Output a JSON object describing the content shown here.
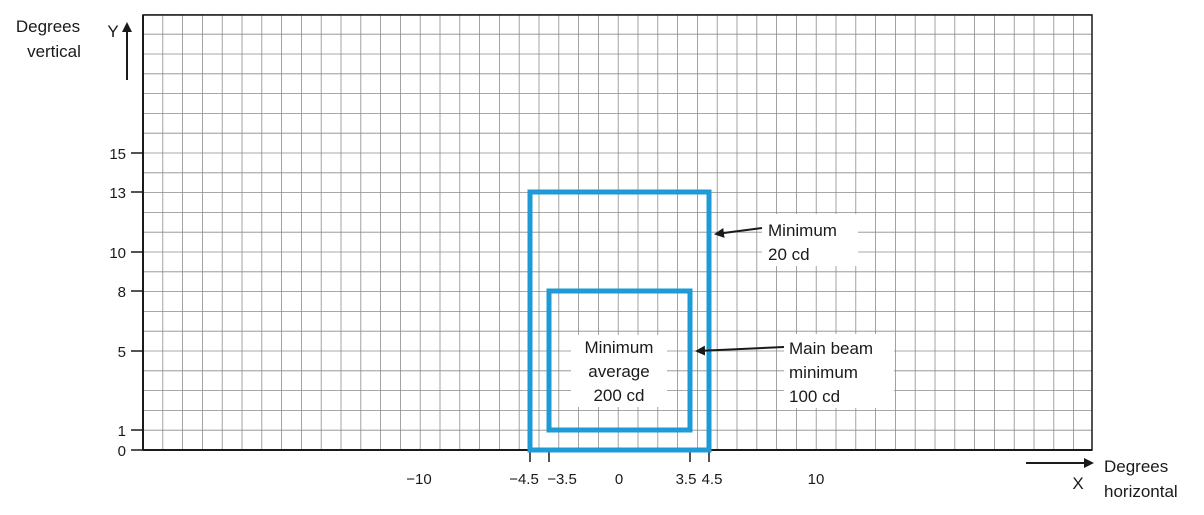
{
  "diagram": {
    "y_axis": {
      "title_line1": "Degrees",
      "title_line2": "vertical",
      "letter": "Y"
    },
    "x_axis": {
      "title_line1": "Degrees",
      "title_line2": "horizontal",
      "letter": "X"
    },
    "y_ticks": [
      "0",
      "1",
      "5",
      "8",
      "10",
      "13",
      "15"
    ],
    "x_ticks": [
      "−10",
      "−4.5",
      "−3.5",
      "0",
      "3.5",
      "4.5",
      "10"
    ],
    "outer_box": {
      "x_range": [
        -4.5,
        4.5
      ],
      "y_range": [
        0,
        13
      ],
      "label_line1": "Minimum",
      "label_line2": "20 cd"
    },
    "inner_box": {
      "x_range": [
        -3.5,
        3.5
      ],
      "y_range": [
        1,
        8
      ],
      "center_line1": "Minimum",
      "center_line2": "average",
      "center_line3": "200 cd",
      "label_line1": "Main beam",
      "label_line2": "minimum",
      "label_line3": "100 cd"
    },
    "colors": {
      "box_stroke": "#1e9ad6",
      "grid": "#8c8c8c",
      "axis": "#1a1a1a"
    }
  }
}
